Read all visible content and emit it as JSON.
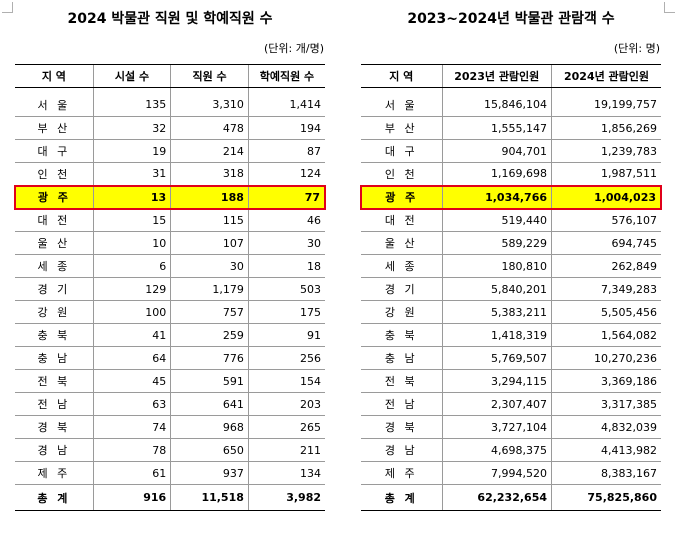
{
  "left": {
    "title": "2024 박물관 직원 및 학예직원 수",
    "unit": "(단위: 개/명)",
    "headers": [
      "지 역",
      "시설 수",
      "직원 수",
      "학예직원 수"
    ],
    "rows": [
      [
        "서 울",
        "135",
        "3,310",
        "1,414"
      ],
      [
        "부 산",
        "32",
        "478",
        "194"
      ],
      [
        "대 구",
        "19",
        "214",
        "87"
      ],
      [
        "인 천",
        "31",
        "318",
        "124"
      ],
      [
        "광 주",
        "13",
        "188",
        "77"
      ],
      [
        "대 전",
        "15",
        "115",
        "46"
      ],
      [
        "울 산",
        "10",
        "107",
        "30"
      ],
      [
        "세 종",
        "6",
        "30",
        "18"
      ],
      [
        "경 기",
        "129",
        "1,179",
        "503"
      ],
      [
        "강 원",
        "100",
        "757",
        "175"
      ],
      [
        "충 북",
        "41",
        "259",
        "91"
      ],
      [
        "충 남",
        "64",
        "776",
        "256"
      ],
      [
        "전 북",
        "45",
        "591",
        "154"
      ],
      [
        "전 남",
        "63",
        "641",
        "203"
      ],
      [
        "경 북",
        "74",
        "968",
        "265"
      ],
      [
        "경 남",
        "78",
        "650",
        "211"
      ],
      [
        "제 주",
        "61",
        "937",
        "134"
      ]
    ],
    "total": [
      "총 계",
      "916",
      "11,518",
      "3,982"
    ],
    "highlight_row": 4
  },
  "right": {
    "title": "2023~2024년 박물관 관람객 수",
    "unit": "(단위: 명)",
    "headers": [
      "지 역",
      "2023년 관람인원",
      "2024년 관람인원"
    ],
    "rows": [
      [
        "서 울",
        "15,846,104",
        "19,199,757"
      ],
      [
        "부 산",
        "1,555,147",
        "1,856,269"
      ],
      [
        "대 구",
        "904,701",
        "1,239,783"
      ],
      [
        "인 천",
        "1,169,698",
        "1,987,511"
      ],
      [
        "광 주",
        "1,034,766",
        "1,004,023"
      ],
      [
        "대 전",
        "519,440",
        "576,107"
      ],
      [
        "울 산",
        "589,229",
        "694,745"
      ],
      [
        "세 종",
        "180,810",
        "262,849"
      ],
      [
        "경 기",
        "5,840,201",
        "7,349,283"
      ],
      [
        "강 원",
        "5,383,211",
        "5,505,456"
      ],
      [
        "충 북",
        "1,418,319",
        "1,564,082"
      ],
      [
        "충 남",
        "5,769,507",
        "10,270,236"
      ],
      [
        "전 북",
        "3,294,115",
        "3,369,186"
      ],
      [
        "전 남",
        "2,307,407",
        "3,317,385"
      ],
      [
        "경 북",
        "3,727,104",
        "4,832,039"
      ],
      [
        "경 남",
        "4,698,375",
        "4,413,982"
      ],
      [
        "제 주",
        "7,994,520",
        "8,383,167"
      ]
    ],
    "total": [
      "총 계",
      "62,232,654",
      "75,825,860"
    ],
    "highlight_row": 4
  },
  "colors": {
    "highlight_fill": "#ffff00",
    "highlight_border": "#e0001a"
  }
}
